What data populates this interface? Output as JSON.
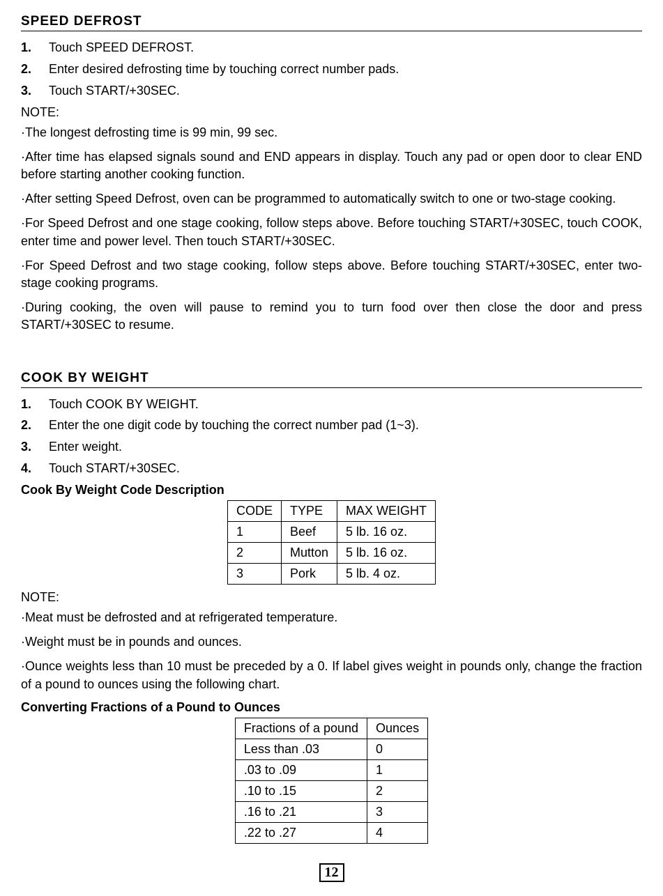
{
  "speed_defrost": {
    "heading": "SPEED DEFROST",
    "steps": [
      {
        "num": "1.",
        "text": "Touch SPEED DEFROST."
      },
      {
        "num": "2.",
        "text": "Enter desired defrosting time by touching correct number pads."
      },
      {
        "num": "3.",
        "text": "Touch START/+30SEC."
      }
    ],
    "note_label": "NOTE:",
    "notes": [
      "·The longest defrosting time is 99 min, 99 sec.",
      "·After time has elapsed signals sound and END appears in display. Touch any pad or open door to clear END before starting another cooking function.",
      "·After setting Speed Defrost, oven can be programmed to automatically switch to one or two-stage cooking.",
      "·For Speed Defrost and one stage cooking, follow steps above. Before touching START/+30SEC, touch COOK, enter time and power level. Then touch START/+30SEC.",
      "·For Speed Defrost and two stage cooking, follow steps above. Before touching START/+30SEC, enter two-stage cooking programs.",
      "·During cooking, the oven will pause to remind you to turn food over then close the door and press START/+30SEC to resume."
    ]
  },
  "cook_by_weight": {
    "heading": "COOK BY WEIGHT",
    "steps": [
      {
        "num": "1.",
        "text": "Touch COOK BY WEIGHT."
      },
      {
        "num": "2.",
        "text": "Enter the one digit code by touching the correct number pad (1~3)."
      },
      {
        "num": "3.",
        "text": "Enter weight."
      },
      {
        "num": "4.",
        "text": "Touch START/+30SEC."
      }
    ],
    "table1_heading": "Cook By Weight Code Description",
    "table1": {
      "headers": [
        "CODE",
        "TYPE",
        "MAX WEIGHT"
      ],
      "rows": [
        [
          "1",
          "Beef",
          "5 lb. 16 oz."
        ],
        [
          "2",
          "Mutton",
          "5 lb. 16 oz."
        ],
        [
          "3",
          "Pork",
          "5 lb. 4 oz."
        ]
      ],
      "col_widths": [
        "80px",
        "100px",
        "160px"
      ]
    },
    "note_label": "NOTE:",
    "notes": [
      "·Meat must be defrosted and at refrigerated temperature.",
      "·Weight must be in pounds and ounces.",
      "·Ounce weights less than 10 must be preceded by a 0. If label gives weight in pounds only, change the fraction of a pound to ounces using the following chart."
    ],
    "table2_heading": "Converting Fractions of a Pound to Ounces",
    "table2": {
      "headers": [
        "Fractions of a pound",
        "Ounces"
      ],
      "rows": [
        [
          "Less than .03",
          "0"
        ],
        [
          ".03 to .09",
          "1"
        ],
        [
          ".10 to .15",
          "2"
        ],
        [
          ".16 to .21",
          "3"
        ],
        [
          ".22 to .27",
          "4"
        ]
      ],
      "col_widths": [
        "200px",
        "120px"
      ]
    }
  },
  "page_number": "12"
}
